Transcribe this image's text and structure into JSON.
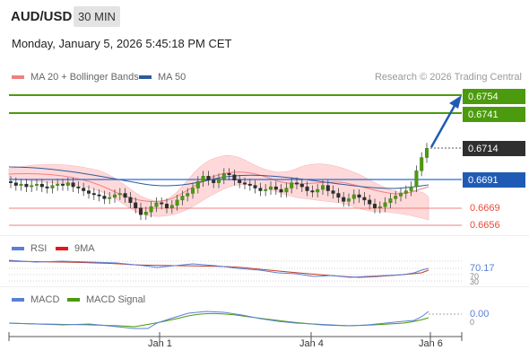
{
  "header": {
    "pair": "AUD/USD",
    "timeframe": "30 MIN",
    "datetime": "Monday, January 5, 2026 5:45:18 PM CET"
  },
  "legend": {
    "ma20": "MA 20 + Bollinger Bands",
    "ma50": "MA 50",
    "credit": "Research © 2026 Trading Central",
    "rsi": "RSI",
    "rsi_ma": "9MA",
    "macd": "MACD",
    "macd_signal": "MACD Signal"
  },
  "levels": {
    "r2": "0.6754",
    "r1": "0.6741",
    "last": "0.6714",
    "pivot": "0.6691",
    "s1": "0.6669",
    "s2": "0.6656"
  },
  "indicators": {
    "rsi_value": "70.17",
    "rsi_ref_a": "70",
    "rsi_ref_b": "30",
    "macd_value": "0.00",
    "macd_ref": "0"
  },
  "xaxis": {
    "labels": [
      "Jan 1",
      "Jan 4",
      "Jan 6"
    ]
  },
  "colors": {
    "green": "#4c9a0e",
    "blue": "#1f5bb5",
    "pivot_blue": "#2a6bd6",
    "red": "#e84c3d",
    "band": "#ffd5d5",
    "dark": "#2f2f2f"
  },
  "chart_data": {
    "type": "candlestick",
    "series_close": [
      0.6688,
      0.6686,
      0.6687,
      0.6685,
      0.6686,
      0.6687,
      0.6685,
      0.6684,
      0.6686,
      0.6687,
      0.6686,
      0.6688,
      0.6685,
      0.6684,
      0.6682,
      0.668,
      0.6679,
      0.6678,
      0.6676,
      0.6677,
      0.6679,
      0.668,
      0.6677,
      0.6673,
      0.6669,
      0.6664,
      0.6666,
      0.667,
      0.6673,
      0.6672,
      0.6669,
      0.6671,
      0.6675,
      0.6678,
      0.668,
      0.6684,
      0.6689,
      0.6693,
      0.669,
      0.6688,
      0.6691,
      0.6695,
      0.6694,
      0.669,
      0.6688,
      0.6687,
      0.6686,
      0.6684,
      0.6682,
      0.6683,
      0.6685,
      0.6683,
      0.6681,
      0.6684,
      0.6688,
      0.6687,
      0.6685,
      0.6682,
      0.6681,
      0.6683,
      0.6686,
      0.6682,
      0.668,
      0.6677,
      0.6674,
      0.6676,
      0.6679,
      0.6677,
      0.6675,
      0.6672,
      0.6669,
      0.667,
      0.6673,
      0.6676,
      0.6678,
      0.668,
      0.6682,
      0.6685,
      0.6697,
      0.6707,
      0.6714
    ]
  }
}
